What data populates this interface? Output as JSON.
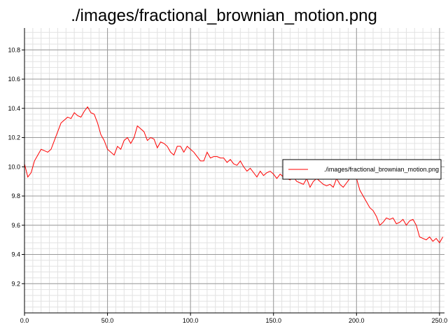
{
  "chart_data": {
    "type": "line",
    "title": "./images/fractional_brownian_motion.png",
    "xlabel": "",
    "ylabel": "",
    "xlim": [
      0,
      253
    ],
    "ylim": [
      9.0,
      10.95
    ],
    "x_ticks": [
      0,
      50,
      100,
      150,
      200,
      250
    ],
    "x_tick_labels": [
      "0.0",
      "50.0",
      "100.0",
      "150.0",
      "200.0",
      "250.0"
    ],
    "y_ticks": [
      9.2,
      9.4,
      9.6,
      9.8,
      10.0,
      10.2,
      10.4,
      10.6,
      10.8
    ],
    "y_tick_labels": [
      "9.2",
      "9.4",
      "9.6",
      "9.8",
      "10.0",
      "10.2",
      "10.4",
      "10.6",
      "10.8"
    ],
    "grid": true,
    "minor_grid": true,
    "legend": {
      "position": "right",
      "entries": [
        "./images/fractional_brownian_motion.png"
      ]
    },
    "series": [
      {
        "name": "./images/fractional_brownian_motion.png",
        "color": "#ff0000",
        "x": [
          0,
          2,
          4,
          6,
          8,
          10,
          12,
          14,
          16,
          18,
          20,
          22,
          24,
          26,
          28,
          30,
          32,
          34,
          36,
          38,
          40,
          42,
          44,
          46,
          48,
          50,
          52,
          54,
          56,
          58,
          60,
          62,
          64,
          66,
          68,
          70,
          72,
          74,
          76,
          78,
          80,
          82,
          84,
          86,
          88,
          90,
          92,
          94,
          96,
          98,
          100,
          102,
          104,
          106,
          108,
          110,
          112,
          114,
          116,
          118,
          120,
          122,
          124,
          126,
          128,
          130,
          132,
          134,
          136,
          138,
          140,
          142,
          144,
          146,
          148,
          150,
          152,
          154,
          156,
          158,
          160,
          162,
          164,
          166,
          168,
          170,
          172,
          174,
          176,
          178,
          180,
          182,
          184,
          186,
          188,
          190,
          192,
          194,
          196,
          198,
          200,
          202,
          204,
          206,
          208,
          210,
          212,
          214,
          216,
          218,
          220,
          222,
          224,
          226,
          228,
          230,
          232,
          234,
          236,
          238,
          240,
          242,
          244,
          246,
          248,
          250,
          252
        ],
        "y": [
          10.02,
          9.93,
          9.96,
          10.04,
          10.08,
          10.12,
          10.11,
          10.1,
          10.12,
          10.18,
          10.24,
          10.3,
          10.32,
          10.34,
          10.33,
          10.37,
          10.35,
          10.34,
          10.38,
          10.41,
          10.37,
          10.36,
          10.3,
          10.22,
          10.18,
          10.12,
          10.1,
          10.08,
          10.14,
          10.12,
          10.18,
          10.2,
          10.16,
          10.2,
          10.28,
          10.26,
          10.24,
          10.18,
          10.2,
          10.19,
          10.13,
          10.17,
          10.16,
          10.14,
          10.1,
          10.08,
          10.14,
          10.14,
          10.1,
          10.14,
          10.12,
          10.1,
          10.07,
          10.04,
          10.04,
          10.1,
          10.06,
          10.07,
          10.07,
          10.06,
          10.06,
          10.03,
          10.05,
          10.02,
          10.01,
          10.04,
          10.0,
          9.97,
          9.99,
          9.96,
          9.93,
          9.97,
          9.94,
          9.96,
          9.97,
          9.95,
          9.92,
          9.95,
          9.93,
          9.92,
          9.91,
          9.93,
          9.9,
          9.89,
          9.88,
          9.92,
          9.86,
          9.9,
          9.92,
          9.9,
          9.88,
          9.87,
          9.88,
          9.86,
          9.92,
          9.88,
          9.86,
          9.89,
          9.92,
          9.94,
          9.92,
          9.84,
          9.8,
          9.76,
          9.72,
          9.7,
          9.66,
          9.6,
          9.62,
          9.65,
          9.64,
          9.65,
          9.61,
          9.62,
          9.64,
          9.6,
          9.63,
          9.64,
          9.6,
          9.52,
          9.51,
          9.5,
          9.52,
          9.49,
          9.51,
          9.48,
          9.52
        ]
      }
    ]
  }
}
